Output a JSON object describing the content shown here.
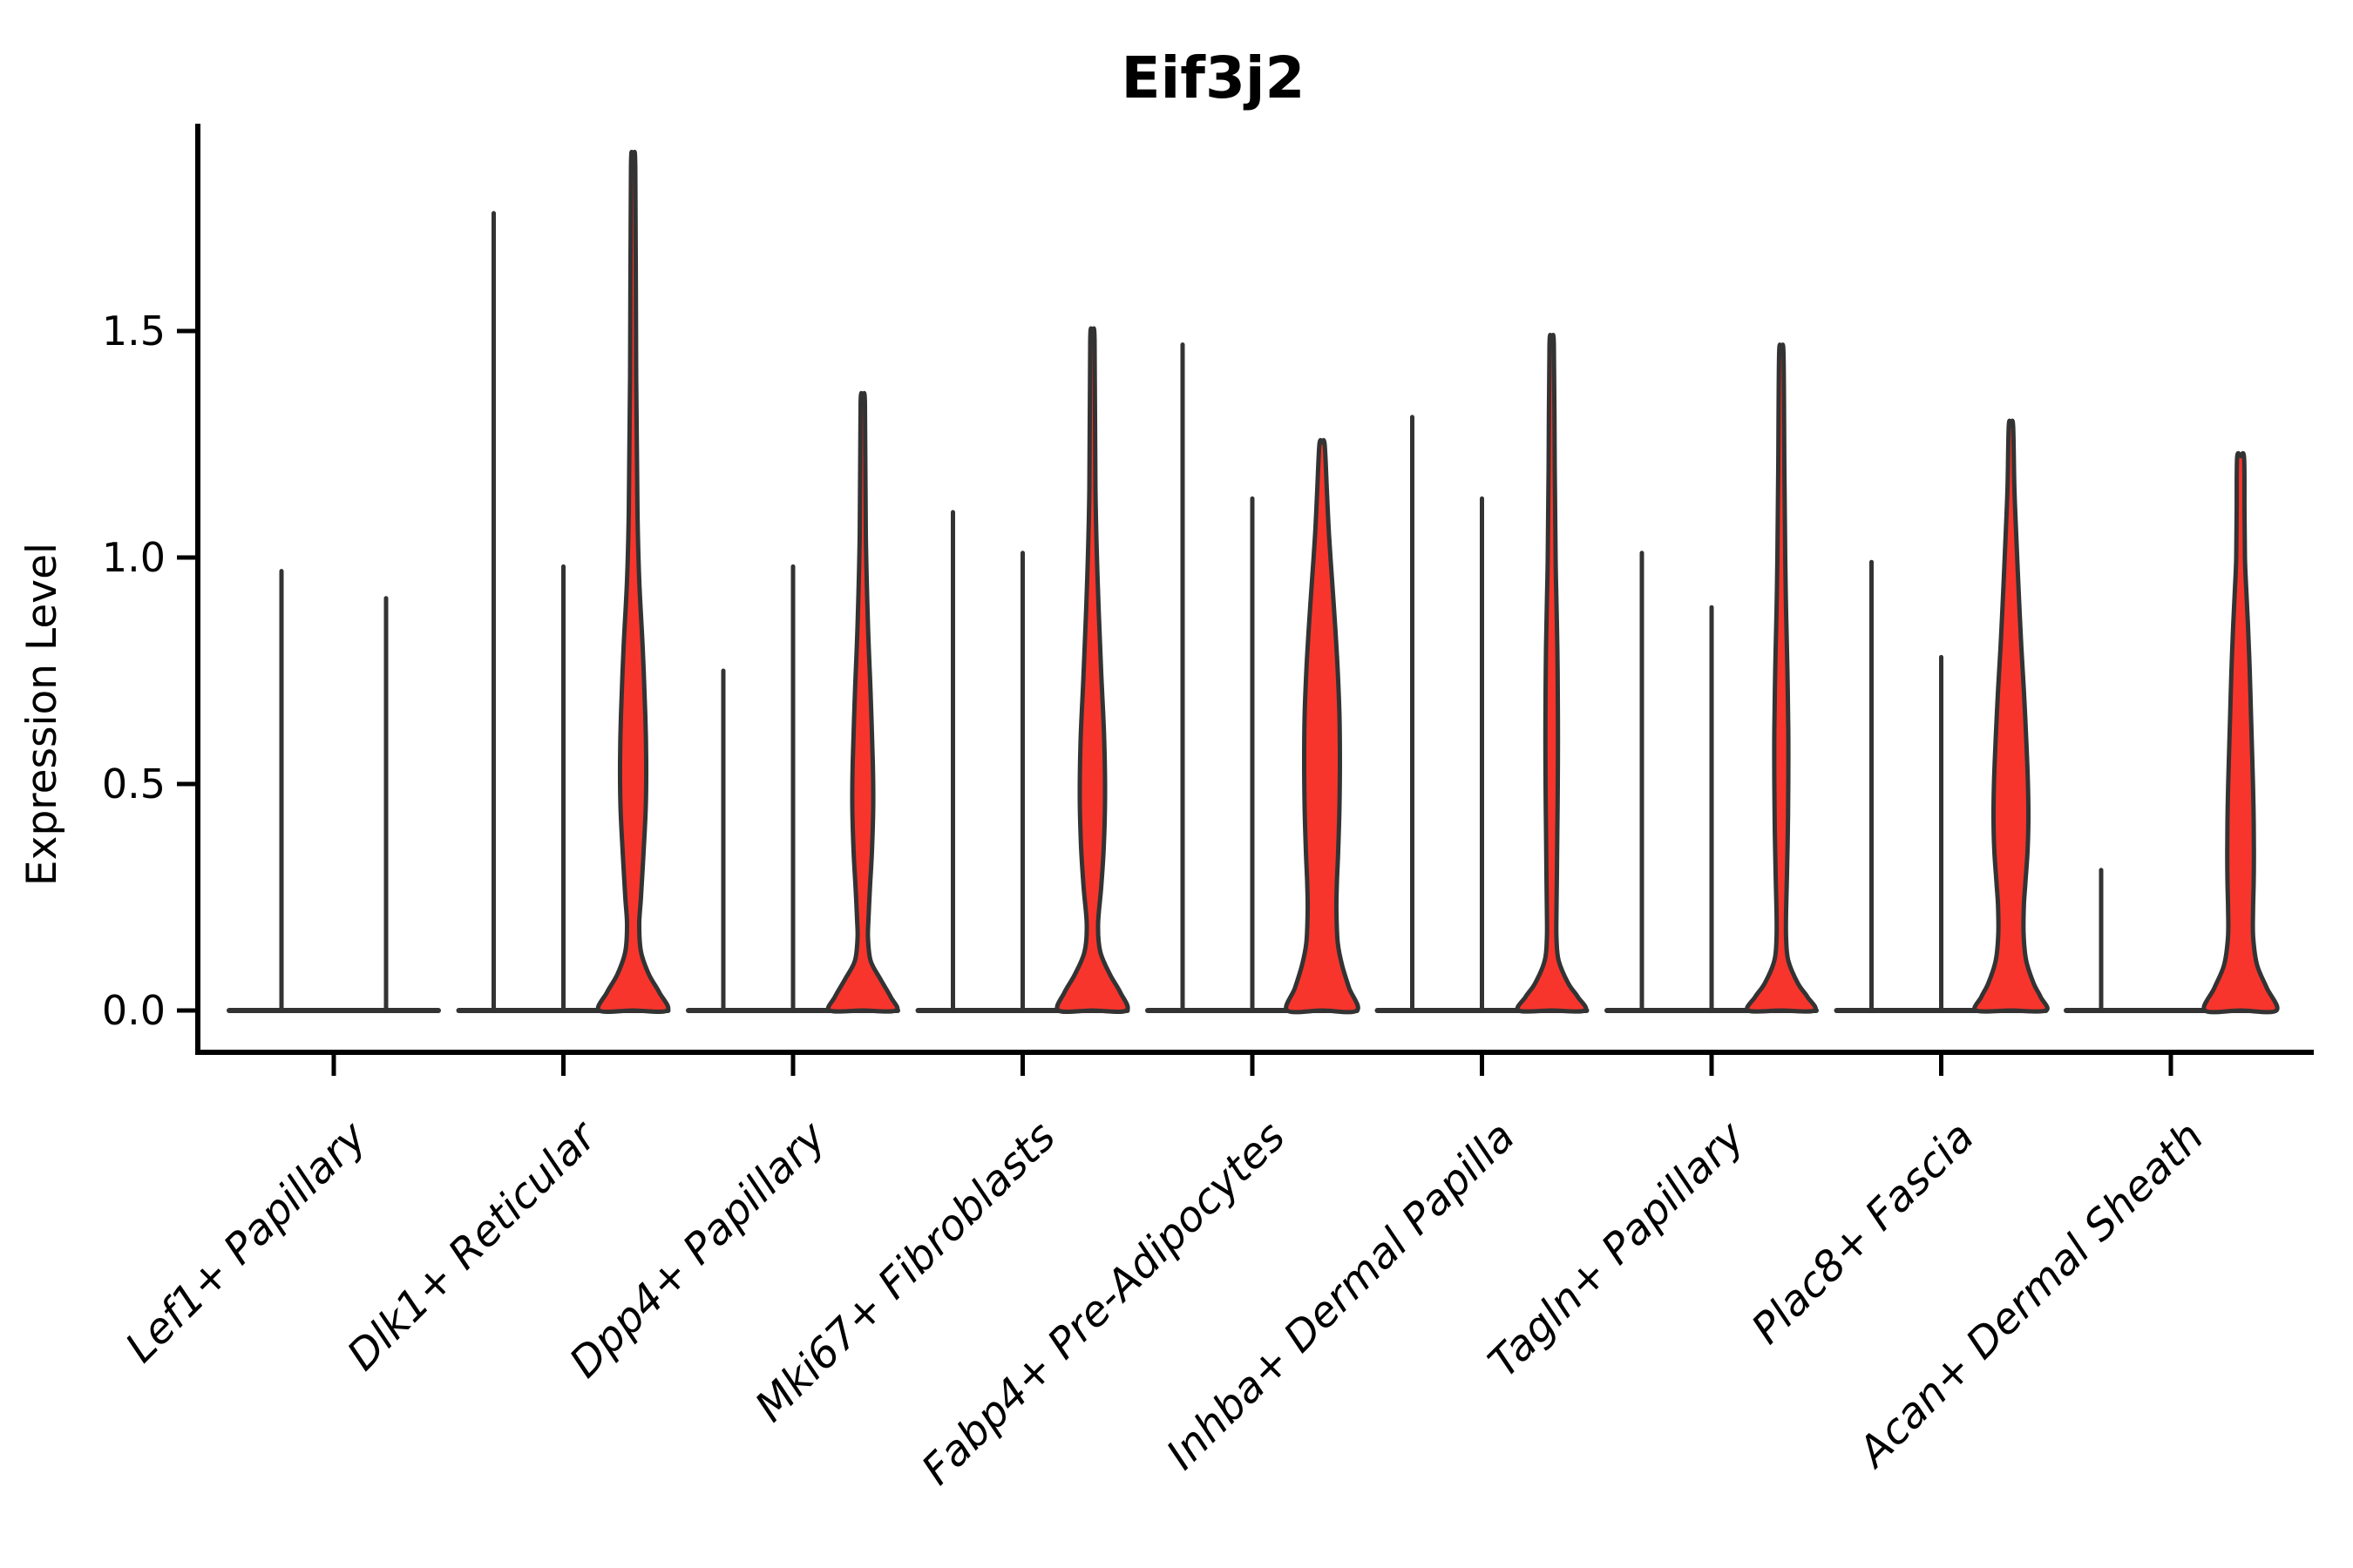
{
  "title": "Eif3j2",
  "y_axis": {
    "label": "Expression Level",
    "tick_labels": [
      "0.0",
      "0.5",
      "1.0",
      "1.5"
    ]
  },
  "colors": {
    "violin_fill": "#F8352C",
    "violin_edge": "#333333",
    "axis": "#000000",
    "background": "#FFFFFF"
  },
  "chart_data": {
    "type": "violin",
    "title": "Eif3j2",
    "xlabel": "",
    "ylabel": "Expression Level",
    "ylim": [
      0,
      1.95
    ],
    "yticks": [
      0,
      0.5,
      1.0,
      1.5
    ],
    "ytick_labels": [
      "0.0",
      "0.5",
      "1.0",
      "1.5"
    ],
    "grid": false,
    "legend": "none",
    "x_tick_rotation": 45,
    "categories": [
      "Lef1+ Papillary",
      "Dlk1+ Reticular",
      "Dpp4+ Papillary",
      "Mki67+ Fibroblasts",
      "Fabp4+ Pre-Adipocytes",
      "Inhba+ Dermal Papilla",
      "Tagln+ Papillary",
      "Plac8+ Fascia",
      "Acan+ Dermal Sheath"
    ],
    "groups": [
      {
        "label": "Lef1+ Papillary",
        "violins": [
          {
            "offset": -60,
            "max": 0.97,
            "kind": "spike"
          },
          {
            "offset": 60,
            "max": 0.91,
            "kind": "spike"
          }
        ]
      },
      {
        "label": "Dlk1+ Reticular",
        "violins": [
          {
            "offset": -80,
            "max": 1.76,
            "kind": "spike"
          },
          {
            "offset": 0,
            "max": 0.98,
            "kind": "spike"
          },
          {
            "offset": 80,
            "max": 1.86,
            "kind": "violin",
            "profile": [
              [
                1.86,
                2.5
              ],
              [
                1.4,
                3.5
              ],
              [
                1.1,
                5
              ],
              [
                0.95,
                7
              ],
              [
                0.8,
                11
              ],
              [
                0.65,
                14
              ],
              [
                0.55,
                15
              ],
              [
                0.45,
                14.5
              ],
              [
                0.35,
                12
              ],
              [
                0.25,
                9
              ],
              [
                0.19,
                7
              ],
              [
                0.13,
                9
              ],
              [
                0.08,
                18
              ],
              [
                0.04,
                30
              ],
              [
                0,
                39
              ]
            ]
          }
        ]
      },
      {
        "label": "Dpp4+ Papillary",
        "violins": [
          {
            "offset": -80,
            "max": 0.75,
            "kind": "spike"
          },
          {
            "offset": 0,
            "max": 0.98,
            "kind": "spike"
          },
          {
            "offset": 80,
            "max": 1.34,
            "kind": "violin",
            "profile": [
              [
                1.34,
                2.5
              ],
              [
                1.05,
                3.5
              ],
              [
                0.85,
                6
              ],
              [
                0.7,
                9
              ],
              [
                0.55,
                11.5
              ],
              [
                0.45,
                12
              ],
              [
                0.35,
                10.5
              ],
              [
                0.28,
                8.5
              ],
              [
                0.2,
                6.5
              ],
              [
                0.16,
                6
              ],
              [
                0.11,
                9
              ],
              [
                0.07,
                20
              ],
              [
                0.03,
                32
              ],
              [
                0,
                38
              ]
            ]
          }
        ]
      },
      {
        "label": "Mki67+ Fibroblasts",
        "violins": [
          {
            "offset": -80,
            "max": 1.1,
            "kind": "spike"
          },
          {
            "offset": 0,
            "max": 1.01,
            "kind": "spike"
          },
          {
            "offset": 80,
            "max": 1.48,
            "kind": "violin",
            "profile": [
              [
                1.48,
                2.5
              ],
              [
                1.15,
                3.5
              ],
              [
                0.95,
                6
              ],
              [
                0.75,
                10
              ],
              [
                0.6,
                13.5
              ],
              [
                0.47,
                14.5
              ],
              [
                0.36,
                13
              ],
              [
                0.27,
                10
              ],
              [
                0.19,
                6.5
              ],
              [
                0.13,
                9
              ],
              [
                0.08,
                20
              ],
              [
                0.04,
                32
              ],
              [
                0,
                39
              ]
            ]
          }
        ]
      },
      {
        "label": "Fabp4+ Pre-Adipocytes",
        "violins": [
          {
            "offset": -80,
            "max": 1.47,
            "kind": "spike"
          },
          {
            "offset": 0,
            "max": 1.13,
            "kind": "spike"
          },
          {
            "offset": 80,
            "max": 1.25,
            "kind": "violin",
            "profile": [
              [
                1.25,
                3
              ],
              [
                1.15,
                5.5
              ],
              [
                1.05,
                8
              ],
              [
                0.95,
                11.5
              ],
              [
                0.85,
                15
              ],
              [
                0.75,
                18
              ],
              [
                0.65,
                20
              ],
              [
                0.55,
                20.5
              ],
              [
                0.45,
                20
              ],
              [
                0.35,
                18.5
              ],
              [
                0.28,
                17
              ],
              [
                0.22,
                16.5
              ],
              [
                0.15,
                18
              ],
              [
                0.1,
                23
              ],
              [
                0.05,
                31
              ],
              [
                0,
                40
              ]
            ]
          }
        ]
      },
      {
        "label": "Inhba+ Dermal Papilla",
        "violins": [
          {
            "offset": -80,
            "max": 1.31,
            "kind": "spike"
          },
          {
            "offset": 0,
            "max": 1.13,
            "kind": "spike"
          },
          {
            "offset": 80,
            "max": 1.47,
            "kind": "violin",
            "profile": [
              [
                1.47,
                2.5
              ],
              [
                1.2,
                3.5
              ],
              [
                1.0,
                4.5
              ],
              [
                0.9,
                5.5
              ],
              [
                0.8,
                6.5
              ],
              [
                0.7,
                7
              ],
              [
                0.6,
                7.2
              ],
              [
                0.5,
                7
              ],
              [
                0.4,
                6.5
              ],
              [
                0.3,
                6
              ],
              [
                0.22,
                5.5
              ],
              [
                0.16,
                5.5
              ],
              [
                0.11,
                8
              ],
              [
                0.06,
                19
              ],
              [
                0.03,
                30
              ],
              [
                0,
                38
              ]
            ]
          }
        ]
      },
      {
        "label": "Tagln+ Papillary",
        "violins": [
          {
            "offset": -80,
            "max": 1.01,
            "kind": "spike"
          },
          {
            "offset": 0,
            "max": 0.89,
            "kind": "spike"
          },
          {
            "offset": 80,
            "max": 1.45,
            "kind": "violin",
            "profile": [
              [
                1.45,
                2.5
              ],
              [
                1.2,
                3.5
              ],
              [
                1.0,
                4.5
              ],
              [
                0.88,
                5.5
              ],
              [
                0.75,
                7
              ],
              [
                0.62,
                8
              ],
              [
                0.5,
                8
              ],
              [
                0.4,
                7.5
              ],
              [
                0.3,
                6.5
              ],
              [
                0.22,
                5.5
              ],
              [
                0.16,
                5.5
              ],
              [
                0.11,
                8
              ],
              [
                0.06,
                19
              ],
              [
                0.03,
                30
              ],
              [
                0,
                38
              ]
            ]
          }
        ]
      },
      {
        "label": "Plac8+ Fascia",
        "violins": [
          {
            "offset": -80,
            "max": 0.99,
            "kind": "spike"
          },
          {
            "offset": 0,
            "max": 0.78,
            "kind": "spike"
          },
          {
            "offset": 80,
            "max": 1.29,
            "kind": "violin",
            "profile": [
              [
                1.29,
                2.5
              ],
              [
                1.15,
                4
              ],
              [
                1.03,
                6.5
              ],
              [
                0.92,
                9
              ],
              [
                0.8,
                12
              ],
              [
                0.7,
                15
              ],
              [
                0.6,
                17.5
              ],
              [
                0.5,
                19.5
              ],
              [
                0.42,
                20
              ],
              [
                0.35,
                19
              ],
              [
                0.28,
                16.5
              ],
              [
                0.23,
                14.8
              ],
              [
                0.17,
                14.5
              ],
              [
                0.11,
                17.5
              ],
              [
                0.06,
                26
              ],
              [
                0.03,
                34
              ],
              [
                0,
                40
              ]
            ]
          }
        ]
      },
      {
        "label": "Acan+ Dermal Sheath",
        "violins": [
          {
            "offset": -80,
            "max": 0.31,
            "kind": "spike"
          },
          {
            "offset": 80,
            "max": 1.22,
            "kind": "violin",
            "profile": [
              [
                1.22,
                4
              ],
              [
                1.1,
                4.5
              ],
              [
                1.0,
                5
              ],
              [
                0.93,
                6.5
              ],
              [
                0.85,
                8.5
              ],
              [
                0.75,
                10.5
              ],
              [
                0.65,
                12
              ],
              [
                0.55,
                13.5
              ],
              [
                0.45,
                14.8
              ],
              [
                0.35,
                15.3
              ],
              [
                0.28,
                15
              ],
              [
                0.22,
                14.3
              ],
              [
                0.16,
                14.5
              ],
              [
                0.1,
                19
              ],
              [
                0.05,
                30
              ],
              [
                0,
                41
              ]
            ]
          }
        ]
      }
    ]
  }
}
